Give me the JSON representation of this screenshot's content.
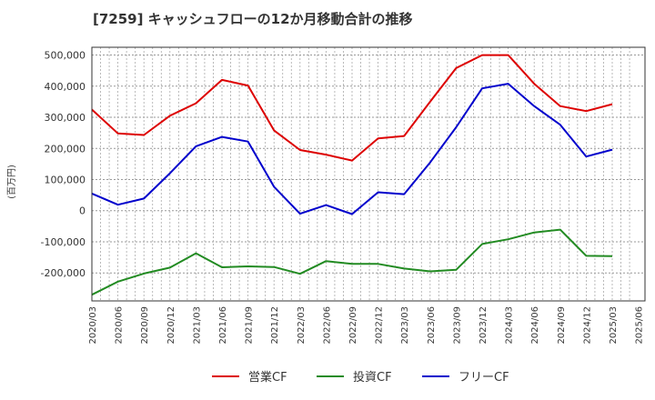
{
  "chart_data": {
    "type": "line",
    "title": "[7259]  キャッシュフローの12か月移動合計の推移",
    "ylabel": "(百万円)",
    "xlabel": "",
    "ylim": [
      -290000,
      525000
    ],
    "y_ticks": [
      500000,
      400000,
      300000,
      200000,
      100000,
      0,
      -100000,
      -200000
    ],
    "y_tick_labels": [
      "500,000",
      "400,000",
      "300,000",
      "200,000",
      "100,000",
      "0",
      "-100,000",
      "-200,000"
    ],
    "x_tick_labels": [
      "2020/03",
      "2020/06",
      "2020/09",
      "2020/12",
      "2021/03",
      "2021/06",
      "2021/09",
      "2021/12",
      "2022/03",
      "2022/06",
      "2022/09",
      "2022/12",
      "2023/03",
      "2023/06",
      "2023/09",
      "2023/12",
      "2024/03",
      "2024/06",
      "2024/09",
      "2024/12",
      "2025/03",
      "2025/06"
    ],
    "categories": [
      "2020/03",
      "2020/06",
      "2020/09",
      "2020/12",
      "2021/03",
      "2021/06",
      "2021/09",
      "2021/12",
      "2022/03",
      "2022/06",
      "2022/09",
      "2022/12",
      "2023/03",
      "2023/06",
      "2023/09",
      "2023/12",
      "2024/03",
      "2024/06",
      "2024/09",
      "2024/12",
      "2025/03"
    ],
    "grid": true,
    "legend_position": "bottom",
    "series": [
      {
        "name": "営業CF",
        "color": "#dd0000",
        "values": [
          325000,
          248000,
          243000,
          305000,
          345000,
          420000,
          402000,
          258000,
          195000,
          180000,
          161000,
          232000,
          240000,
          350000,
          458000,
          500000,
          500000,
          408000,
          336000,
          320000,
          342000
        ]
      },
      {
        "name": "投資CF",
        "color": "#228b22",
        "values": [
          -270000,
          -228000,
          -202000,
          -183000,
          -137000,
          -182000,
          -179000,
          -181000,
          -203000,
          -162000,
          -171000,
          -171000,
          -186000,
          -195000,
          -190000,
          -107000,
          -92000,
          -70000,
          -61000,
          -145000,
          -146000
        ]
      },
      {
        "name": "フリーCF",
        "color": "#0000cc",
        "values": [
          55000,
          19000,
          39000,
          120000,
          207000,
          237000,
          222000,
          77000,
          -10000,
          18000,
          -11000,
          59000,
          53000,
          155000,
          268000,
          393000,
          408000,
          336000,
          276000,
          174000,
          196000
        ]
      }
    ]
  }
}
